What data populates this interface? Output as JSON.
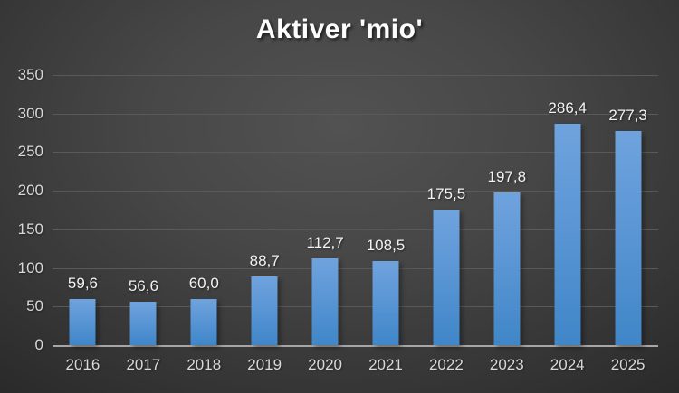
{
  "chart_data": {
    "type": "bar",
    "title": "Aktiver 'mio'",
    "categories": [
      "2016",
      "2017",
      "2018",
      "2019",
      "2020",
      "2021",
      "2022",
      "2023",
      "2024",
      "2025"
    ],
    "values": [
      59.6,
      56.6,
      60.0,
      88.7,
      112.7,
      108.5,
      175.5,
      197.8,
      286.4,
      277.3
    ],
    "data_labels": [
      "59,6",
      "56,6",
      "60,0",
      "88,7",
      "112,7",
      "108,5",
      "175,5",
      "197,8",
      "286,4",
      "277,3"
    ],
    "xlabel": "",
    "ylabel": "",
    "ylim": [
      0,
      350
    ],
    "yticks": [
      0,
      50,
      100,
      150,
      200,
      250,
      300,
      350
    ],
    "grid": true,
    "legend": false,
    "colors": {
      "bar_top": "#6fa3dd",
      "bar_bottom": "#3f86c8",
      "gridline": "#595959",
      "axis_line": "#a6a6a6",
      "tick_label": "#d9d9d9",
      "data_label": "#f2f2f2",
      "title": "#fdfdfd",
      "background_center": "#525252",
      "background_edge": "#262626"
    }
  }
}
